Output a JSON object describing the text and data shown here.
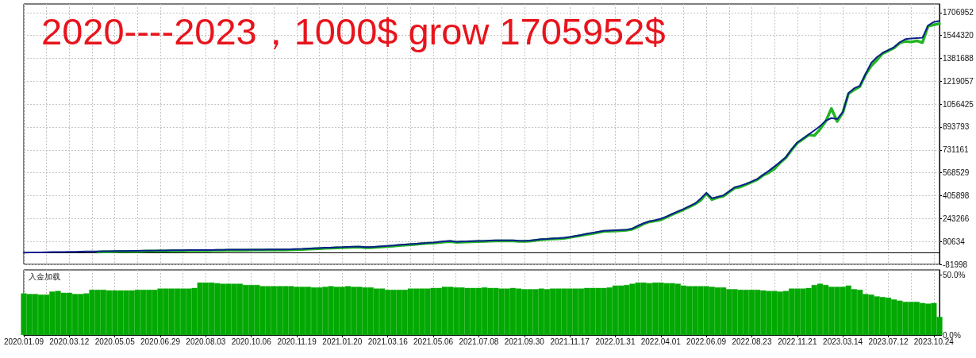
{
  "chart_data": [
    {
      "type": "line",
      "title": "2020----2023，1000$ grow 1705952$",
      "categories": [
        "2020.01.09",
        null,
        null,
        null,
        null,
        null,
        null,
        null,
        "2020.03.12",
        null,
        null,
        null,
        null,
        null,
        null,
        null,
        "2020.05.05",
        null,
        null,
        null,
        null,
        null,
        null,
        null,
        "2020.06.29",
        null,
        null,
        null,
        null,
        null,
        null,
        null,
        "2020.08.03",
        null,
        null,
        null,
        null,
        null,
        null,
        null,
        "2020.10.06",
        null,
        null,
        null,
        null,
        null,
        null,
        null,
        "2020.11.19",
        null,
        null,
        null,
        null,
        null,
        null,
        null,
        "2021.01.20",
        null,
        null,
        null,
        null,
        null,
        null,
        null,
        "2021.03.16",
        null,
        null,
        null,
        null,
        null,
        null,
        null,
        "2021.05.06",
        null,
        null,
        null,
        null,
        null,
        null,
        null,
        "2021.07.08",
        null,
        null,
        null,
        null,
        null,
        null,
        null,
        "2021.09.30",
        null,
        null,
        null,
        null,
        null,
        null,
        null,
        "2021.11.17",
        null,
        null,
        null,
        null,
        null,
        null,
        null,
        "2022.01.31",
        null,
        null,
        null,
        null,
        null,
        null,
        null,
        "2022.04.01",
        null,
        null,
        null,
        null,
        null,
        null,
        null,
        "2022.06.09",
        null,
        null,
        null,
        null,
        null,
        null,
        null,
        "2022.08.23",
        null,
        null,
        null,
        null,
        null,
        null,
        null,
        "2022.11.21",
        null,
        null,
        null,
        null,
        null,
        null,
        null,
        "2023.03.14",
        null,
        null,
        null,
        null,
        null,
        null,
        null,
        "2023.07.12",
        null,
        null,
        null,
        null,
        null,
        null,
        null,
        "2023.10.24",
        null
      ],
      "series": [
        {
          "color": "#22b522",
          "values": [
            null,
            null,
            null,
            null,
            null,
            null,
            null,
            null,
            null,
            null,
            null,
            null,
            null,
            6000,
            7000,
            7000,
            8000,
            9000,
            9000,
            10000,
            10000,
            11000,
            12000,
            12000,
            13000,
            13000,
            14000,
            14000,
            14000,
            15000,
            15000,
            16000,
            16000,
            16000,
            17000,
            17000,
            18000,
            18000,
            18000,
            18000,
            19000,
            19000,
            19000,
            20000,
            20000,
            20000,
            20000,
            21000,
            23000,
            24000,
            26000,
            28000,
            30000,
            32000,
            33000,
            35000,
            36000,
            38000,
            39000,
            40000,
            37000,
            36000,
            39000,
            42000,
            45000,
            48000,
            52000,
            55000,
            58000,
            61000,
            64000,
            67000,
            69000,
            73000,
            77000,
            80000,
            74000,
            76000,
            77000,
            79000,
            80000,
            81000,
            83000,
            84000,
            84000,
            85000,
            85000,
            82000,
            81000,
            83000,
            88000,
            93000,
            95000,
            98000,
            100000,
            103000,
            109000,
            116000,
            123000,
            131000,
            136000,
            145000,
            152000,
            154000,
            155000,
            158000,
            160000,
            168000,
            185000,
            206000,
            220000,
            227000,
            234000,
            253000,
            272000,
            290000,
            307000,
            326000,
            346000,
            372000,
            421000,
            378000,
            393000,
            403000,
            432000,
            461000,
            468000,
            486000,
            503000,
            521000,
            551000,
            570000,
            598000,
            641000,
            676000,
            731000,
            780000,
            808000,
            837000,
            833000,
            878000,
            935000,
            1025000,
            933000,
            996000,
            1131000,
            1158000,
            1182000,
            1266000,
            1328000,
            1370000,
            1416000,
            1436000,
            1456000,
            1491000,
            1503000,
            1498000,
            1506000,
            1493000,
            1611000,
            1620000,
            1628000
          ]
        },
        {
          "color": "#0c1f8c",
          "values": [
            1000,
            2000,
            2000,
            3000,
            4000,
            5000,
            5000,
            6000,
            7000,
            7000,
            8000,
            9000,
            9000,
            10000,
            11000,
            11000,
            12000,
            13000,
            13000,
            14000,
            14000,
            15000,
            16000,
            16000,
            17000,
            17000,
            18000,
            18000,
            18000,
            19000,
            19000,
            20000,
            20000,
            20000,
            21000,
            21000,
            22000,
            22000,
            22000,
            22000,
            23000,
            23000,
            23000,
            24000,
            24000,
            24000,
            24000,
            25000,
            27000,
            28000,
            30000,
            32000,
            34000,
            36000,
            37000,
            39000,
            40000,
            42000,
            43000,
            44000,
            41000,
            40000,
            43000,
            46000,
            49000,
            52000,
            56000,
            59000,
            62000,
            65000,
            68000,
            71000,
            73000,
            77000,
            81000,
            85000,
            78000,
            80000,
            81000,
            83000,
            84000,
            85000,
            87000,
            88000,
            88000,
            89000,
            89000,
            86000,
            85000,
            87000,
            92000,
            97000,
            99000,
            102000,
            104000,
            107000,
            113000,
            120000,
            127000,
            135000,
            142000,
            149000,
            156000,
            158000,
            160000,
            162000,
            164000,
            172000,
            193000,
            210000,
            224000,
            231000,
            242000,
            257000,
            276000,
            294000,
            311000,
            330000,
            350000,
            385000,
            425000,
            388000,
            397000,
            407000,
            436000,
            465000,
            477000,
            490000,
            507000,
            525000,
            555000,
            583000,
            614000,
            645000,
            680000,
            735000,
            784000,
            812000,
            841000,
            870000,
            900000,
            939000,
            957000,
            950000,
            1000000,
            1135000,
            1169000,
            1186000,
            1270000,
            1350000,
            1390000,
            1420000,
            1440000,
            1460000,
            1495000,
            1518000,
            1522000,
            1525000,
            1528000,
            1615000,
            1640000,
            1648000
          ]
        }
      ],
      "ylim": [
        -81998,
        1768000
      ],
      "yticks": [
        -81998,
        80634,
        243266,
        405898,
        568529,
        731161,
        893793,
        1056425,
        1219057,
        1381688,
        1544320,
        1706952
      ],
      "grid": true,
      "tick_labels": "y"
    },
    {
      "type": "bar",
      "title": "入金加载",
      "categories": [
        "2020.01.09",
        null,
        null,
        null,
        null,
        null,
        null,
        null,
        "2020.03.12",
        null,
        null,
        null,
        null,
        null,
        null,
        null,
        "2020.05.05",
        null,
        null,
        null,
        null,
        null,
        null,
        null,
        "2020.06.29",
        null,
        null,
        null,
        null,
        null,
        null,
        null,
        "2020.08.03",
        null,
        null,
        null,
        null,
        null,
        null,
        null,
        "2020.10.06",
        null,
        null,
        null,
        null,
        null,
        null,
        null,
        "2020.11.19",
        null,
        null,
        null,
        null,
        null,
        null,
        null,
        "2021.01.20",
        null,
        null,
        null,
        null,
        null,
        null,
        null,
        "2021.03.16",
        null,
        null,
        null,
        null,
        null,
        null,
        null,
        "2021.05.06",
        null,
        null,
        null,
        null,
        null,
        null,
        null,
        "2021.07.08",
        null,
        null,
        null,
        null,
        null,
        null,
        null,
        "2021.09.30",
        null,
        null,
        null,
        null,
        null,
        null,
        null,
        "2021.11.17",
        null,
        null,
        null,
        null,
        null,
        null,
        null,
        "2022.01.31",
        null,
        null,
        null,
        null,
        null,
        null,
        null,
        "2022.04.01",
        null,
        null,
        null,
        null,
        null,
        null,
        null,
        "2022.06.09",
        null,
        null,
        null,
        null,
        null,
        null,
        null,
        "2022.08.23",
        null,
        null,
        null,
        null,
        null,
        null,
        null,
        "2022.11.21",
        null,
        null,
        null,
        null,
        null,
        null,
        null,
        "2023.03.14",
        null,
        null,
        null,
        null,
        null,
        null,
        null,
        "2023.07.12",
        null,
        null,
        null,
        null,
        null,
        null,
        null,
        "2023.10.24",
        null
      ],
      "values": [
        34.5,
        34,
        34,
        33.5,
        33.5,
        36,
        36.5,
        35,
        35,
        34,
        34,
        34.5,
        37.5,
        37.5,
        37.5,
        37,
        37,
        37,
        37,
        37,
        37.5,
        37.5,
        37.5,
        37.5,
        38.5,
        38.5,
        38.5,
        38.5,
        38.5,
        38.5,
        39,
        43.5,
        43.5,
        43.5,
        43,
        42.5,
        42.5,
        42.5,
        42.5,
        41.5,
        41.5,
        41.5,
        40.5,
        40.5,
        40.5,
        40.5,
        40.5,
        40.5,
        40,
        40,
        40,
        39.5,
        39.5,
        40,
        40.5,
        40,
        40,
        40.5,
        40,
        40,
        39.5,
        39.5,
        38.5,
        38.5,
        37.5,
        37.5,
        37.5,
        37.5,
        38.5,
        38.5,
        38.5,
        38.5,
        39,
        39,
        40,
        40,
        39.5,
        39.5,
        39,
        39,
        39,
        39.5,
        39,
        39,
        38.5,
        38.5,
        39,
        38.5,
        38,
        38,
        38,
        38.5,
        38,
        38.5,
        38.5,
        38.5,
        38.5,
        38.5,
        38.5,
        39,
        39,
        39,
        39,
        39.5,
        41,
        41,
        41.5,
        42.5,
        43.5,
        43.5,
        43,
        43.5,
        43.5,
        43,
        43,
        42.5,
        41,
        40.5,
        40.5,
        40.5,
        40.5,
        40,
        39.5,
        39.5,
        38,
        38,
        37.5,
        37.5,
        37.5,
        37.5,
        37,
        36.5,
        36.5,
        36,
        36.5,
        38.5,
        38.5,
        38.5,
        39,
        41.5,
        42.5,
        41.5,
        40,
        40,
        40,
        41,
        38,
        37.5,
        34,
        33.5,
        32,
        31.5,
        31,
        29.5,
        28.5,
        27.5,
        27.5,
        27.5,
        26.5,
        26,
        26.5,
        15
      ],
      "color": "#02a902",
      "ylim": [
        0,
        54
      ],
      "yticks": [
        {
          "value": 0,
          "label": "0.0%"
        },
        {
          "value": 50,
          "label": "50.0%"
        }
      ],
      "grid": "x"
    }
  ]
}
